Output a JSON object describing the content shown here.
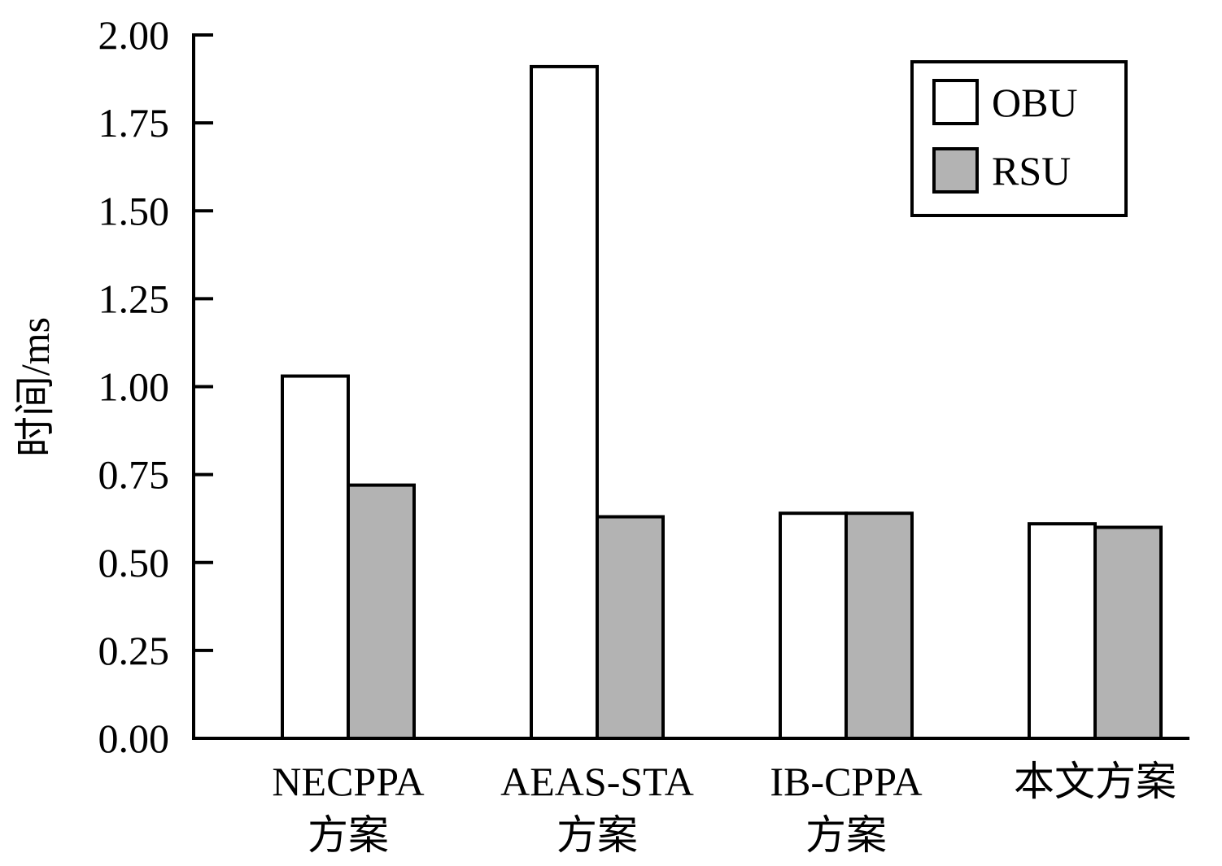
{
  "chart_data": {
    "type": "bar",
    "categories": [
      [
        "NECPPA",
        "方案"
      ],
      [
        "AEAS-STA",
        "方案"
      ],
      [
        "IB-CPPA",
        "方案"
      ],
      [
        "本文方案"
      ]
    ],
    "series": [
      {
        "name": "OBU",
        "color": "#ffffff",
        "values": [
          1.03,
          1.91,
          0.64,
          0.61
        ]
      },
      {
        "name": "RSU",
        "color": "#b3b3b3",
        "values": [
          0.72,
          0.63,
          0.64,
          0.6
        ]
      }
    ],
    "ylabel": "时间/ms",
    "ylim": [
      0,
      2.0
    ],
    "yticks": [
      "0.00",
      "0.25",
      "0.50",
      "0.75",
      "1.00",
      "1.25",
      "1.50",
      "1.75",
      "2.00"
    ],
    "grid": false,
    "legend_position": "top-right"
  }
}
